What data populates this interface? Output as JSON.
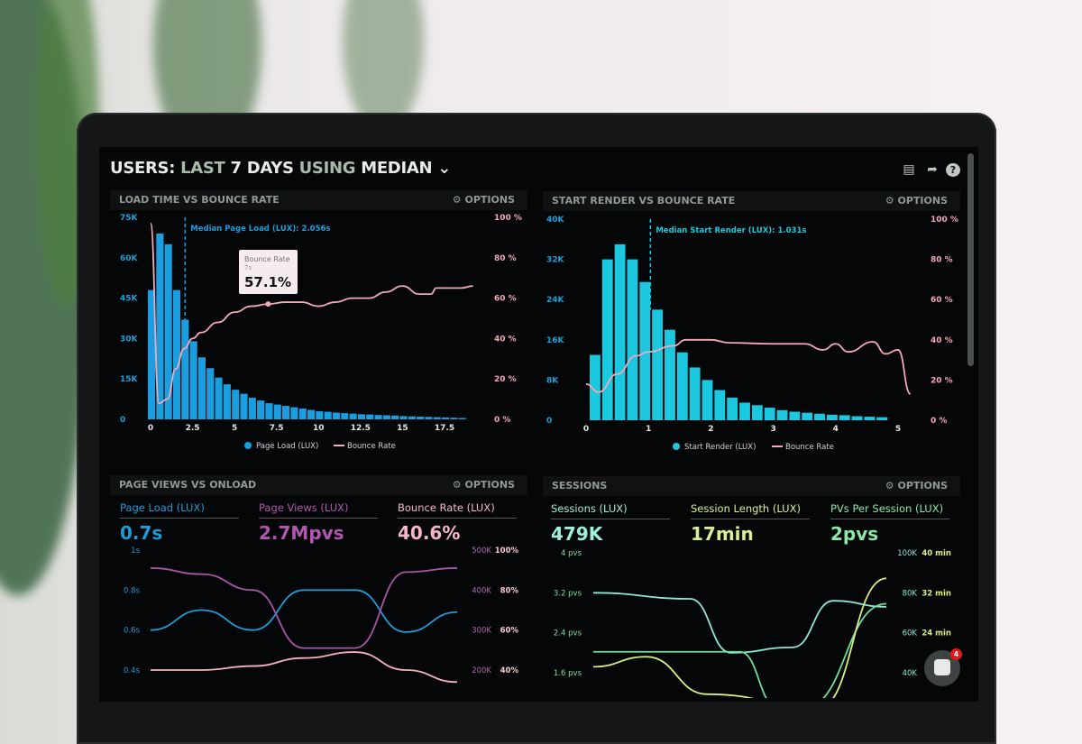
{
  "header": {
    "prefix": "USERS:",
    "part1": "LAST",
    "part2": "7 DAYS",
    "part3": "USING",
    "part4": "MEDIAN",
    "chevron": "chevron-down-icon"
  },
  "toolbar_icons": [
    "monitor-icon",
    "share-icon",
    "help-icon"
  ],
  "panels": [
    {
      "title": "LOAD TIME VS BOUNCE RATE",
      "options": "OPTIONS",
      "options_icon": "gear-icon"
    },
    {
      "title": "START RENDER VS BOUNCE RATE",
      "options": "OPTIONS",
      "options_icon": "gear-icon"
    },
    {
      "title": "PAGE VIEWS VS ONLOAD",
      "options": "OPTIONS",
      "options_icon": "gear-icon",
      "stats": [
        {
          "label": "Page Load (LUX)",
          "value": "0.7s",
          "color": "#1e9bd8"
        },
        {
          "label": "Page Views (LUX)",
          "value": "2.7Mpvs",
          "color": "#b257b0"
        },
        {
          "label": "Bounce Rate (LUX)",
          "value": "40.6%",
          "color": "#f7b7c6"
        }
      ]
    },
    {
      "title": "SESSIONS",
      "options": "OPTIONS",
      "options_icon": "gear-icon",
      "stats": [
        {
          "label": "Sessions (LUX)",
          "value": "479K",
          "color": "#9ff0da"
        },
        {
          "label": "Session Length (LUX)",
          "value": "17min",
          "color": "#d9ef93"
        },
        {
          "label": "PVs Per Session (LUX)",
          "value": "2pvs",
          "color": "#8fe6a8"
        }
      ]
    }
  ],
  "chat": {
    "icon": "chat-icon",
    "badge": "4"
  },
  "chart_data": [
    {
      "type": "bar",
      "title": "LOAD TIME VS BOUNCE RATE",
      "annotation": "Median Page Load (LUX): 2.056s",
      "median": 2.056,
      "tooltip": {
        "label": "Bounce Rate",
        "x": "7s",
        "value": "57.1%"
      },
      "xticks": [
        "0",
        "2.5",
        "5",
        "7.5",
        "10",
        "12.5",
        "15",
        "17.5"
      ],
      "xlim": [
        0,
        19.5
      ],
      "yticks_left": [
        "0",
        "15K",
        "30K",
        "45K",
        "60K",
        "75K"
      ],
      "ylim_left": [
        0,
        75000
      ],
      "yticks_right": [
        "0 %",
        "20 %",
        "40 %",
        "60 %",
        "80 %",
        "100 %"
      ],
      "ylim_right": [
        0,
        100
      ],
      "legend": [
        "Page Load (LUX)",
        "Bounce Rate"
      ],
      "legend_position": "bottom",
      "bar_color": "#1a9ee0",
      "line_color": "#f3a9b9",
      "bars": {
        "name": "Page Load (LUX)",
        "bin_width": 0.5,
        "values": [
          48000,
          69000,
          65000,
          48000,
          37000,
          29000,
          23000,
          19000,
          15500,
          13000,
          11000,
          9500,
          8000,
          7000,
          6000,
          5500,
          5000,
          4500,
          4000,
          3500,
          3000,
          2800,
          2500,
          2300,
          2100,
          1900,
          1800,
          1600,
          1500,
          1400,
          1200,
          1100,
          1000,
          900,
          800,
          700,
          600,
          500
        ]
      },
      "line": {
        "name": "Bounce Rate",
        "x": [
          0,
          0.5,
          1,
          1.5,
          2,
          2.5,
          3,
          4,
          5,
          6,
          7,
          8,
          9,
          10,
          11,
          12,
          13,
          14,
          15,
          16,
          16.7,
          17,
          18.5,
          19.2
        ],
        "y": [
          97,
          8,
          10,
          25,
          35,
          40,
          43,
          48,
          53,
          56,
          57.1,
          58,
          58,
          56,
          58,
          60,
          60,
          63,
          66,
          62,
          62,
          65,
          65,
          66
        ]
      }
    },
    {
      "type": "bar",
      "title": "START RENDER VS BOUNCE RATE",
      "annotation": "Median Start Render (LUX): 1.031s",
      "median": 1.031,
      "xticks": [
        "0",
        "1",
        "2",
        "3",
        "4",
        "5"
      ],
      "xlim": [
        0,
        5.3
      ],
      "yticks_left": [
        "0",
        "8K",
        "16K",
        "24K",
        "32K",
        "40K"
      ],
      "ylim_left": [
        0,
        40000
      ],
      "yticks_right": [
        "0 %",
        "20 %",
        "40 %",
        "60 %",
        "80 %",
        "100 %"
      ],
      "ylim_right": [
        0,
        100
      ],
      "legend": [
        "Start Render (LUX)",
        "Bounce Rate"
      ],
      "legend_position": "bottom",
      "bar_color": "#1cc8e0",
      "line_color": "#f3a9b9",
      "bars": {
        "name": "Start Render (LUX)",
        "bin_width": 0.2,
        "values": [
          13000,
          32000,
          35000,
          32000,
          27500,
          22000,
          18000,
          13500,
          10500,
          8000,
          6000,
          4500,
          3500,
          3000,
          2500,
          2000,
          1700,
          1500,
          1300,
          1100,
          1000,
          800,
          700,
          600
        ]
      },
      "line": {
        "name": "Bounce Rate",
        "x": [
          0,
          0.2,
          0.5,
          0.8,
          1,
          1.4,
          1.6,
          2,
          2.3,
          3,
          3.5,
          3.8,
          4,
          4.2,
          4.6,
          4.8,
          5,
          5.2
        ],
        "y": [
          18,
          14,
          23,
          32,
          34,
          37,
          40,
          40,
          38.5,
          38,
          38,
          35,
          38,
          34,
          39,
          33,
          35,
          13
        ]
      }
    },
    {
      "type": "line",
      "title": "PAGE VIEWS VS ONLOAD",
      "yticks_left": [
        "0.4s",
        "0.6s",
        "0.8s",
        "1s"
      ],
      "ylim_left": [
        0.4,
        1.0
      ],
      "yticks_right_1": [
        "200K",
        "300K",
        "400K",
        "500K"
      ],
      "ylim_right_1": [
        200000,
        500000
      ],
      "yticks_right_2": [
        "40%",
        "60%",
        "80%",
        "100%"
      ],
      "ylim_right_2": [
        40,
        100
      ],
      "series": [
        {
          "name": "Page Load (LUX)",
          "axis": "left",
          "color": "#1e9bd8",
          "values": [
            0.6,
            0.7,
            0.6,
            0.8,
            0.8,
            0.59,
            0.69
          ]
        },
        {
          "name": "Page Views (LUX)",
          "axis": "right_1",
          "color": "#a856a8",
          "values": [
            455000,
            440000,
            400000,
            255000,
            255000,
            445000,
            455000
          ]
        },
        {
          "name": "Bounce Rate (LUX)",
          "axis": "right_2",
          "color": "#f7b0c0",
          "values": [
            40,
            40,
            42,
            46,
            49,
            40,
            34
          ]
        }
      ]
    },
    {
      "type": "line",
      "title": "SESSIONS",
      "yticks_left": [
        "1.6 pvs",
        "2.4 pvs",
        "3.2 pvs",
        "4 pvs"
      ],
      "ylim_left": [
        1.6,
        4
      ],
      "yticks_right_1": [
        "40K",
        "60K",
        "80K",
        "100K"
      ],
      "ylim_right_1": [
        40000,
        100000
      ],
      "yticks_right_2": [
        "24 min",
        "32 min",
        "40 min"
      ],
      "ylim_right_2": [
        16,
        40
      ],
      "series": [
        {
          "name": "Sessions (LUX)",
          "axis": "right_1",
          "color": "#8fe8d4",
          "x": [
            0,
            0.33,
            0.47,
            0.68,
            0.82,
            1
          ],
          "values": [
            80000,
            77000,
            50000,
            52700,
            76000,
            73000
          ]
        },
        {
          "name": "PVs Per Session (LUX)",
          "axis": "left",
          "color": "#6fe09a",
          "x": [
            0,
            0.5,
            0.63,
            0.72,
            1
          ],
          "values": [
            2.02,
            2.02,
            0.9,
            0.9,
            2.98
          ]
        },
        {
          "name": "Session Length (LUX)",
          "axis": "right_2",
          "color": "#d8ef88",
          "x": [
            0,
            0.18,
            0.39,
            0.77,
            1
          ],
          "values": [
            17.2,
            19.2,
            11.7,
            9,
            34.9
          ]
        }
      ]
    }
  ]
}
